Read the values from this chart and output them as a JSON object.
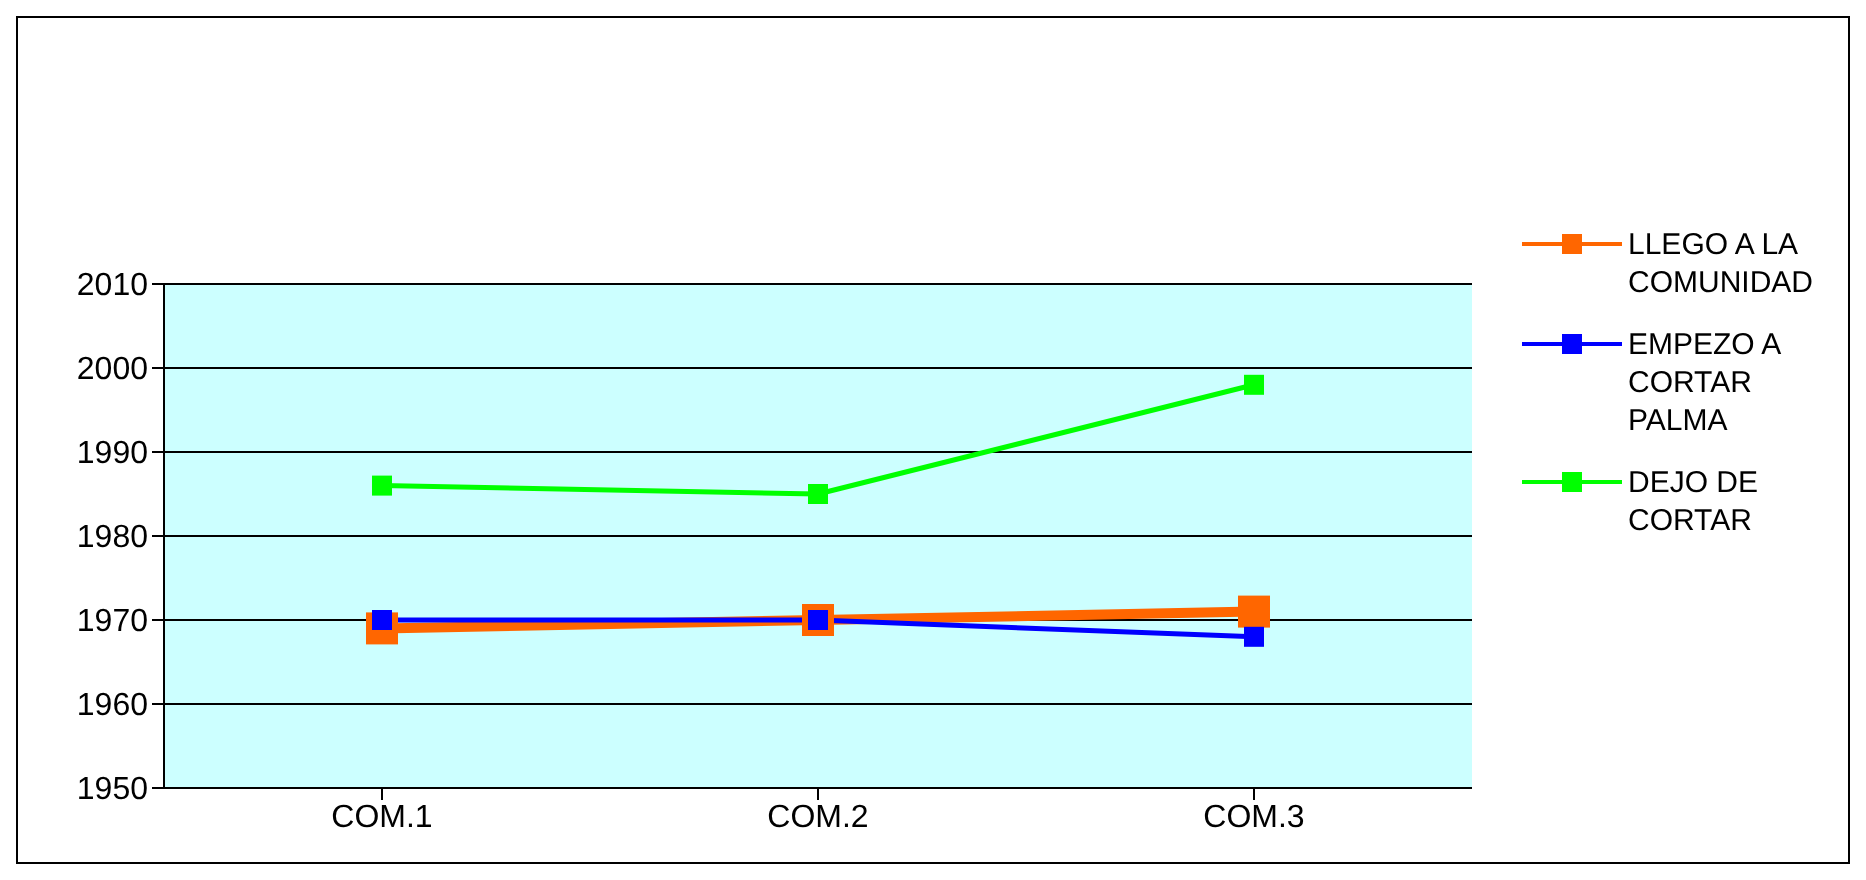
{
  "chart_data": {
    "type": "line",
    "categories": [
      "COM.1",
      "COM.2",
      "COM.3"
    ],
    "series": [
      {
        "name": "LLEGO A LA COMUNIDAD",
        "color": "#ff6600",
        "values": [
          1969,
          1970,
          1971
        ]
      },
      {
        "name": "EMPEZO A CORTAR PALMA",
        "color": "#0000ff",
        "values": [
          1970,
          1970,
          1968
        ]
      },
      {
        "name": "DEJO DE CORTAR",
        "color": "#00ff00",
        "values": [
          1986,
          1985,
          1998
        ]
      }
    ],
    "ylim": [
      1950,
      2010
    ],
    "yticks": [
      1950,
      1960,
      1970,
      1980,
      1990,
      2000,
      2010
    ],
    "grid": "y",
    "legend": "right",
    "marker": "square",
    "line_style": "solid"
  }
}
